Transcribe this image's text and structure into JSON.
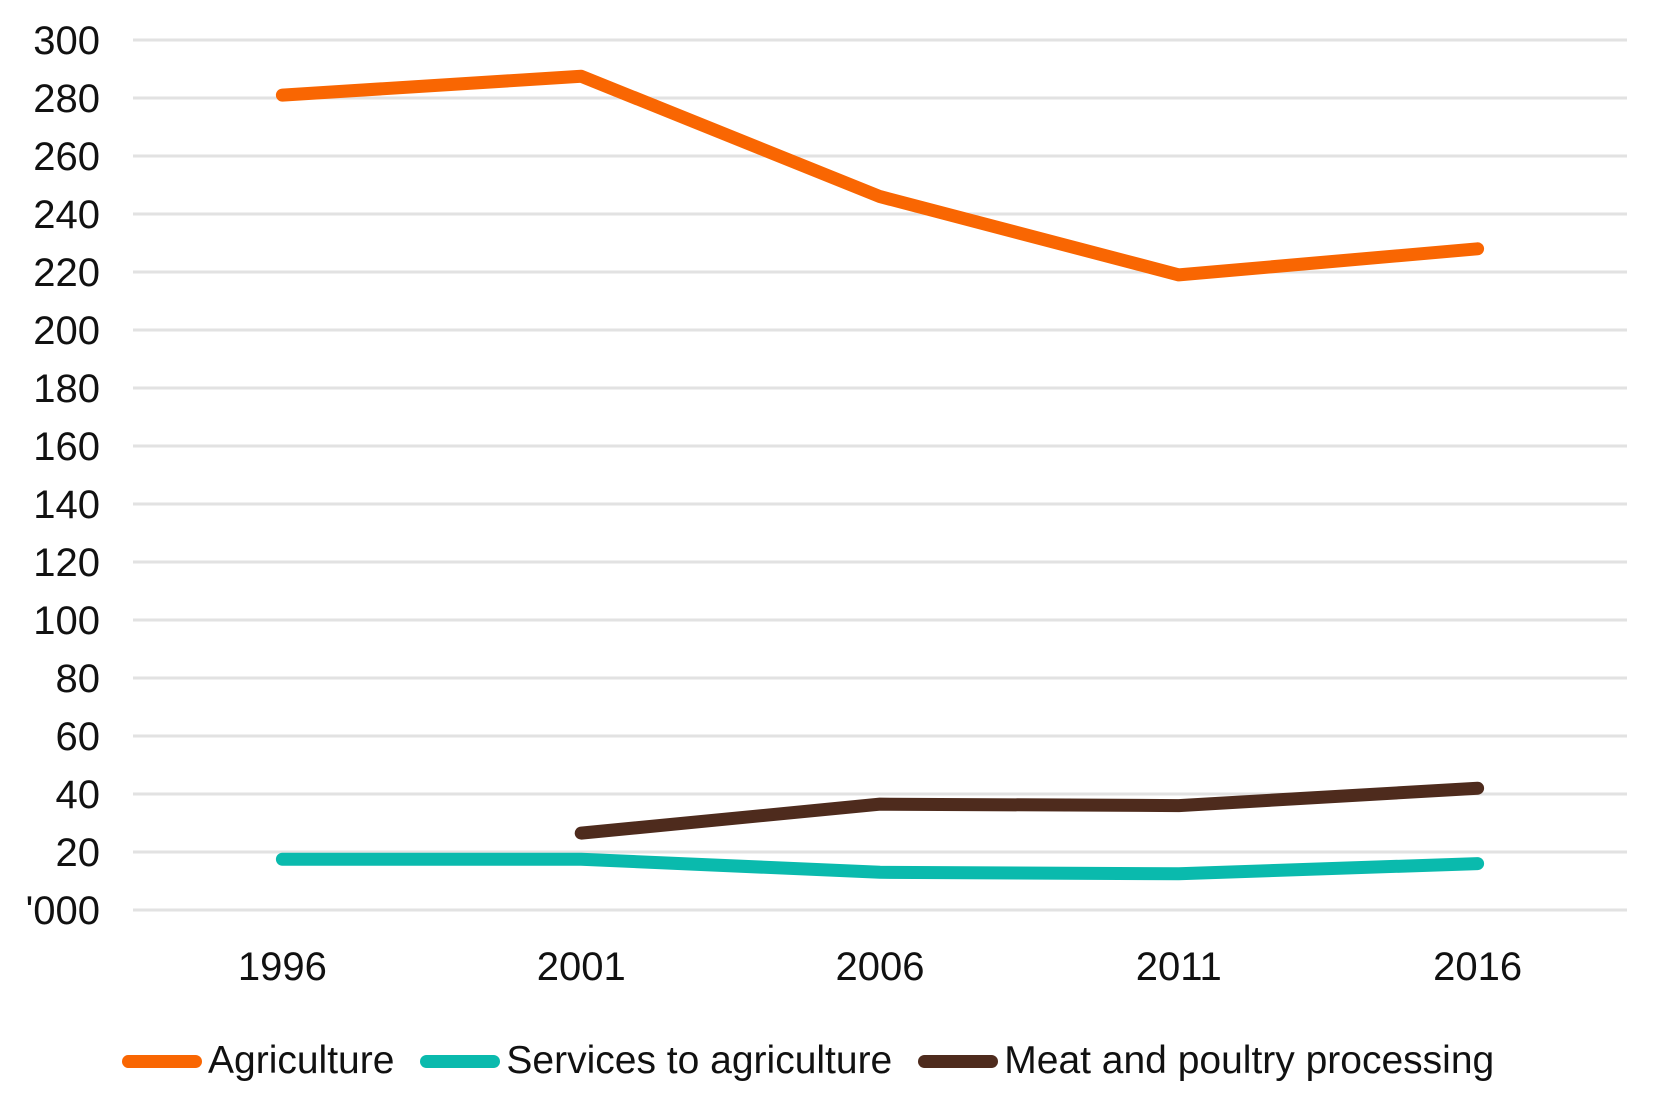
{
  "chart_data": {
    "type": "line",
    "title": "",
    "x_categories": [
      "1996",
      "2001",
      "2006",
      "2011",
      "2016"
    ],
    "y_axis": {
      "min": 0,
      "max": 300,
      "step": 20,
      "zero_label": "'000",
      "tick_labels": [
        "'000",
        "20",
        "40",
        "60",
        "80",
        "100",
        "120",
        "140",
        "160",
        "180",
        "200",
        "220",
        "240",
        "260",
        "280",
        "300"
      ]
    },
    "grid": "horizontal",
    "grid_color": "#E2E2E2",
    "legend_position": "bottom",
    "series": [
      {
        "name": "Agriculture",
        "color": "#F96602",
        "values": [
          281,
          287.5,
          246,
          219,
          228
        ]
      },
      {
        "name": "Services to agriculture",
        "color": "#0ABAAD",
        "values": [
          17.5,
          17.5,
          13,
          12.5,
          16
        ]
      },
      {
        "name": "Meat and poultry processing",
        "color": "#4E2B1D",
        "values": [
          null,
          26.5,
          36.5,
          36,
          42
        ]
      }
    ]
  }
}
